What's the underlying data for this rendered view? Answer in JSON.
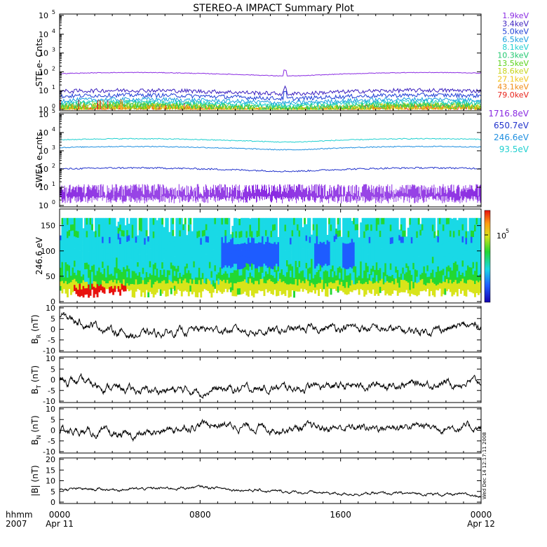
{
  "title": "STEREO-A IMPACT Summary Plot",
  "time_axis": {
    "label_line1": "hhmm",
    "label_line2": "2007",
    "ticks": [
      {
        "time": "0000",
        "date": "Apr 11"
      },
      {
        "time": "0800",
        "date": ""
      },
      {
        "time": "1600",
        "date": ""
      },
      {
        "time": "0000",
        "date": "Apr 12"
      }
    ]
  },
  "side_stamp": "Wed Dec 14 12:17:11 2008",
  "chart_data": [
    {
      "type": "line",
      "panel": "ste",
      "ylabel": "STE e- Cnts",
      "y_scale": "log",
      "ylim": [
        1,
        100000
      ],
      "yticks": [
        {
          "exp": "0",
          "value": 1
        },
        {
          "exp": "1",
          "value": 10
        },
        {
          "exp": "2",
          "value": 100
        },
        {
          "exp": "3",
          "value": 1000
        },
        {
          "exp": "4",
          "value": 10000
        },
        {
          "exp": "5",
          "value": 100000
        }
      ],
      "series": [
        {
          "name": "1.9keV",
          "color": "#8a2be2",
          "level": 80
        },
        {
          "name": "3.4keV",
          "color": "#3a1fbf",
          "level": 9
        },
        {
          "name": "5.0keV",
          "color": "#1f3fd6",
          "level": 5
        },
        {
          "name": "6.5keV",
          "color": "#1aa0e0",
          "level": 3
        },
        {
          "name": "8.1keV",
          "color": "#20d0d0",
          "level": 2.2
        },
        {
          "name": "10.3keV",
          "color": "#22c870",
          "level": 1.7
        },
        {
          "name": "13.5keV",
          "color": "#5bd21a",
          "level": 1.4
        },
        {
          "name": "18.6keV",
          "color": "#c6d41a",
          "level": 1.25
        },
        {
          "name": "27.1keV",
          "color": "#f0c419",
          "level": 1.15
        },
        {
          "name": "43.1keV",
          "color": "#f08a12",
          "level": 1.08
        },
        {
          "name": "79.0keV",
          "color": "#e8231b",
          "level": 1.03
        }
      ]
    },
    {
      "type": "line",
      "panel": "swea",
      "ylabel": "SWEA e- cnts",
      "y_scale": "log",
      "ylim": [
        1,
        100000
      ],
      "yticks": [
        {
          "exp": "0",
          "value": 1
        },
        {
          "exp": "1",
          "value": 10
        },
        {
          "exp": "2",
          "value": 100
        },
        {
          "exp": "3",
          "value": 1000
        },
        {
          "exp": "4",
          "value": 10000
        },
        {
          "exp": "5",
          "value": 100000
        }
      ],
      "series": [
        {
          "name": "1716.8eV",
          "color": "#8a2be2",
          "level": 4
        },
        {
          "name": "650.7eV",
          "color": "#2233cc",
          "level": 100
        },
        {
          "name": "246.6eV",
          "color": "#1f8fe0",
          "level": 1500
        },
        {
          "name": "93.5eV",
          "color": "#20d0d0",
          "level": 4000
        }
      ]
    },
    {
      "type": "heatmap",
      "panel": "pad",
      "ylabel": "246.6 eV",
      "ylim": [
        0,
        180
      ],
      "yticks": [
        "0",
        "50",
        "100",
        "150"
      ],
      "colorbar_label": "10",
      "colorbar_exp": "5"
    },
    {
      "type": "line",
      "panel": "br",
      "ylabel_main": "B",
      "ylabel_sub": "R",
      "ylabel_unit": "(nT)",
      "ylim": [
        -10,
        10
      ],
      "yticks": [
        "-10",
        "-5",
        "0",
        "5",
        "10"
      ],
      "x": [
        "0000",
        "0400",
        "0800",
        "1200",
        "1600",
        "2000",
        "0000"
      ],
      "values": [
        6,
        -3,
        0,
        -1,
        1,
        -1,
        2
      ]
    },
    {
      "type": "line",
      "panel": "bt",
      "ylabel_main": "B",
      "ylabel_sub": "T",
      "ylabel_unit": "(nT)",
      "ylim": [
        -10,
        10
      ],
      "yticks": [
        "-10",
        "-5",
        "0",
        "5",
        "10"
      ],
      "x": [
        "0000",
        "0400",
        "0800",
        "1200",
        "1600",
        "2000",
        "0000"
      ],
      "values": [
        0,
        -5,
        -5,
        -4,
        -3,
        -2,
        -1
      ]
    },
    {
      "type": "line",
      "panel": "bn",
      "ylabel_main": "B",
      "ylabel_sub": "N",
      "ylabel_unit": "(nT)",
      "ylim": [
        -10,
        10
      ],
      "yticks": [
        "-10",
        "-5",
        "0",
        "5",
        "10"
      ],
      "x": [
        "0000",
        "0400",
        "0800",
        "1200",
        "1600",
        "2000",
        "0000"
      ],
      "values": [
        0,
        -3,
        3,
        1,
        1,
        2,
        1
      ]
    },
    {
      "type": "line",
      "panel": "bmag",
      "ylabel_main": "|B|",
      "ylabel_sub": "",
      "ylabel_unit": "(nT)",
      "ylim": [
        0,
        20
      ],
      "yticks": [
        "0",
        "5",
        "10",
        "15",
        "20"
      ],
      "x": [
        "0000",
        "0400",
        "0800",
        "1200",
        "1600",
        "2000",
        "0000"
      ],
      "values": [
        6,
        6,
        7,
        5,
        4,
        4,
        3
      ]
    }
  ]
}
